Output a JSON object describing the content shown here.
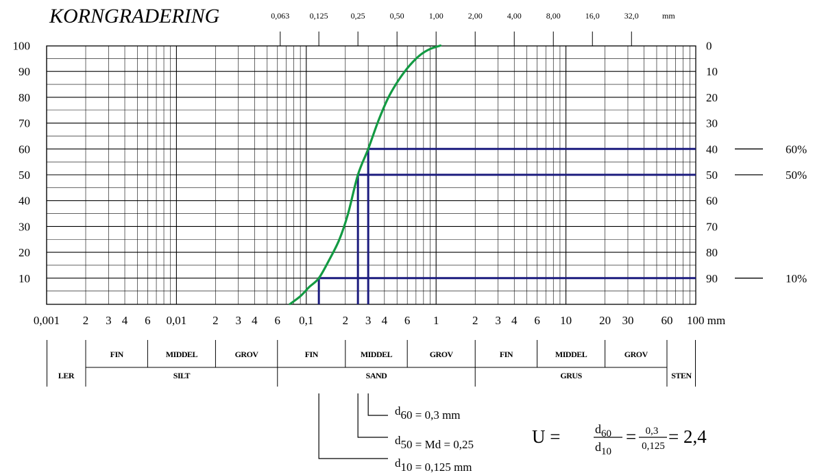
{
  "chart_data": {
    "type": "line",
    "title": "KORNGRADERING",
    "x_scale": "log",
    "xlim": [
      0.001,
      100
    ],
    "ylim": [
      0,
      100
    ],
    "grid": true,
    "top_ticks": [
      "0,063",
      "0,125",
      "0,25",
      "0,50",
      "1,00",
      "2,00",
      "4,00",
      "8,00",
      "16,0",
      "32,0"
    ],
    "top_tick_values": [
      0.063,
      0.125,
      0.25,
      0.5,
      1,
      2,
      4,
      8,
      16,
      32
    ],
    "top_unit": "mm",
    "bottom_ticks": [
      "0,001",
      "2",
      "3",
      "4",
      "6",
      "0,01",
      "2",
      "3",
      "4",
      "6",
      "0,1",
      "2",
      "3",
      "4",
      "6",
      "1",
      "2",
      "3",
      "4",
      "6",
      "10",
      "20",
      "30",
      "60",
      "100 mm"
    ],
    "bottom_tick_values": [
      0.001,
      0.002,
      0.003,
      0.004,
      0.006,
      0.01,
      0.02,
      0.03,
      0.04,
      0.06,
      0.1,
      0.2,
      0.3,
      0.4,
      0.6,
      1,
      2,
      3,
      4,
      6,
      10,
      20,
      30,
      60,
      100
    ],
    "left_ticks": [
      "100",
      "90",
      "80",
      "70",
      "60",
      "50",
      "40",
      "30",
      "20",
      "10"
    ],
    "left_tick_values": [
      100,
      90,
      80,
      70,
      60,
      50,
      40,
      30,
      20,
      10
    ],
    "right_ticks": [
      "0",
      "10",
      "20",
      "30",
      "40",
      "50",
      "60",
      "70",
      "80",
      "90"
    ],
    "right_tick_values": [
      100,
      90,
      80,
      70,
      60,
      50,
      40,
      30,
      20,
      10
    ],
    "markers": [
      {
        "label": "60%",
        "y": 60
      },
      {
        "label": "50%",
        "y": 50
      },
      {
        "label": "10%",
        "y": 10
      }
    ],
    "series": [
      {
        "color": "#139a43",
        "x": [
          0.075,
          0.09,
          0.105,
          0.125,
          0.15,
          0.18,
          0.21,
          0.25,
          0.3,
          0.36,
          0.43,
          0.52,
          0.63,
          0.76,
          0.9,
          1.08
        ],
        "y": [
          0,
          3,
          6.5,
          10,
          17,
          25,
          35,
          50,
          60,
          71,
          80,
          87,
          92.5,
          96.5,
          98.7,
          100
        ]
      }
    ],
    "guides": [
      {
        "x": 0.125,
        "y": 10,
        "color": "#1b1b7e"
      },
      {
        "x": 0.25,
        "y": 50,
        "color": "#1b1b7e"
      },
      {
        "x": 0.3,
        "y": 60,
        "color": "#1b1b7e"
      }
    ],
    "classification": {
      "sub_row": [
        {
          "label": "FIN",
          "from": 0.002,
          "to": 0.006
        },
        {
          "label": "MIDDEL",
          "from": 0.006,
          "to": 0.02
        },
        {
          "label": "GROV",
          "from": 0.02,
          "to": 0.06
        },
        {
          "label": "FIN",
          "from": 0.06,
          "to": 0.2
        },
        {
          "label": "MIDDEL",
          "from": 0.2,
          "to": 0.6
        },
        {
          "label": "GROV",
          "from": 0.6,
          "to": 2
        },
        {
          "label": "FIN",
          "from": 2,
          "to": 6
        },
        {
          "label": "MIDDEL",
          "from": 6,
          "to": 20
        },
        {
          "label": "GROV",
          "from": 20,
          "to": 60
        }
      ],
      "main_row": [
        {
          "label": "LER",
          "from": 0.001,
          "to": 0.002
        },
        {
          "label": "SILT",
          "from": 0.002,
          "to": 0.06
        },
        {
          "label": "SAND",
          "from": 0.06,
          "to": 2
        },
        {
          "label": "GRUS",
          "from": 2,
          "to": 60
        },
        {
          "label": "STEN",
          "from": 60,
          "to": 100
        }
      ]
    },
    "annotations": {
      "d60": {
        "sub": "60",
        "text": " = 0,3 mm"
      },
      "d50": {
        "sub": "50",
        "text": " = Md = 0,25"
      },
      "d10": {
        "sub": "10",
        "text": " = 0,125 mm"
      },
      "formula": {
        "lhs": "U =",
        "num": "d",
        "num_sub": "60",
        "den": "d",
        "den_sub": "10",
        "eq1": "=",
        "frac_num": "0,3",
        "frac_den": "0,125",
        "result": "= 2,4"
      }
    }
  }
}
